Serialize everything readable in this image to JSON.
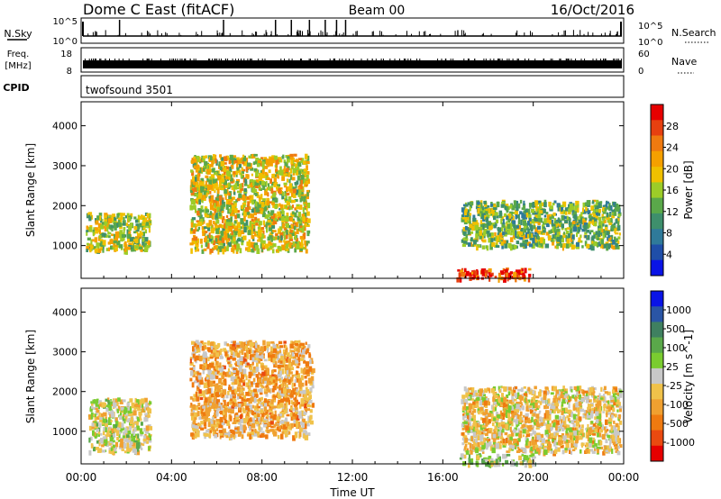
{
  "header": {
    "title": "Dome C East (fitACF)",
    "beam": "Beam 00",
    "date": "16/Oct/2016"
  },
  "nsky": {
    "label": "N.Sky",
    "top_tick": "10^5",
    "bottom_tick": "10^0",
    "right_label": "N.Search",
    "right_top_tick": "10^5",
    "right_bottom_tick": "10^0"
  },
  "freq": {
    "label_line1": "Freq.",
    "label_line2": "[MHz]",
    "top_tick": "18",
    "bottom_tick": "8",
    "right_label": "Nave",
    "right_top_tick": "60",
    "right_bottom_tick": "0"
  },
  "cpid": {
    "label": "CPID",
    "value": "twofsound 3501"
  },
  "x_axis": {
    "label": "Time UT",
    "ticks": [
      "00:00",
      "04:00",
      "08:00",
      "12:00",
      "16:00",
      "20:00",
      "00:00"
    ]
  },
  "colors": {
    "power": [
      "#0a14e6",
      "#1f4ea8",
      "#2f7a9a",
      "#3e8f6c",
      "#5aa84a",
      "#9ccc28",
      "#f0c000",
      "#f5a000",
      "#ef7a10",
      "#e64010",
      "#e60000"
    ],
    "velocity": [
      "#0a14e6",
      "#2a55a5",
      "#3f8060",
      "#5aa84a",
      "#7acc30",
      "#c8c8c8",
      "#f0c24a",
      "#f0a030",
      "#ef7a10",
      "#ea4a10",
      "#e60000"
    ]
  },
  "chart_data": [
    {
      "type": "heatmap",
      "title": "",
      "xlabel": "",
      "ylabel": "Slant Range [km]",
      "xlim": [
        "00:00",
        "24:00"
      ],
      "ylim": [
        180,
        4600
      ],
      "yticks": [
        "1000",
        "2000",
        "3000",
        "4000"
      ],
      "colorbar": {
        "label": "Power [dB]",
        "ticks": [
          "28",
          "24",
          "20",
          "16",
          "12",
          "8",
          "4"
        ],
        "range": [
          0,
          32
        ]
      },
      "regions": [
        {
          "t0": 0.2,
          "t1": 3.0,
          "r0": 900,
          "r1": 1850,
          "value": 16
        },
        {
          "t0": 4.8,
          "t1": 10.0,
          "r0": 900,
          "r1": 3300,
          "value": 18
        },
        {
          "t0": 16.8,
          "t1": 23.8,
          "r0": 1000,
          "r1": 2150,
          "value": 14
        },
        {
          "t0": 16.6,
          "t1": 19.8,
          "r0": 200,
          "r1": 450,
          "value": 28
        }
      ]
    },
    {
      "type": "heatmap",
      "title": "",
      "xlabel": "Time UT",
      "ylabel": "Slant Range [km]",
      "xlim": [
        "00:00",
        "24:00"
      ],
      "ylim": [
        180,
        4600
      ],
      "yticks": [
        "1000",
        "2000",
        "3000",
        "4000"
      ],
      "colorbar": {
        "label": "Velocity [m s^-1]",
        "ticks": [
          "1000",
          "500",
          "100",
          "25",
          "-25",
          "-100",
          "-500",
          "-1000"
        ],
        "range": [
          -1000,
          1000
        ]
      },
      "regions": [
        {
          "t0": 0.3,
          "t1": 3.0,
          "r0": 500,
          "r1": 1850,
          "value": -25
        },
        {
          "t0": 4.8,
          "t1": 10.2,
          "r0": 900,
          "r1": 3300,
          "value": -300
        },
        {
          "t0": 16.8,
          "t1": 23.8,
          "r0": 500,
          "r1": 2150,
          "value": -150
        },
        {
          "t0": 16.7,
          "t1": 20.0,
          "r0": 200,
          "r1": 450,
          "value": 150
        }
      ]
    }
  ]
}
